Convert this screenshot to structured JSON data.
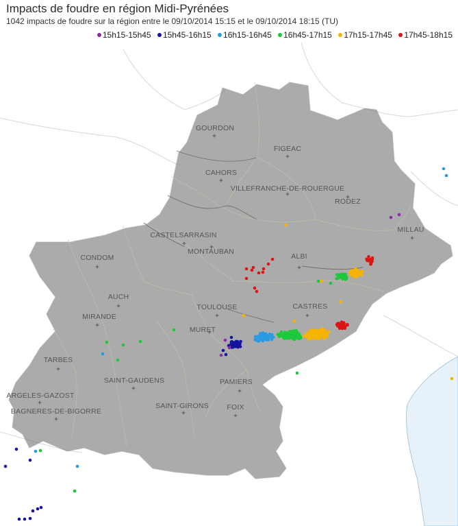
{
  "header": {
    "title": "Impacts de foudre en région Midi-Pyrénées",
    "subtitle": "1042 impacts de foudre sur la région entre le 09/10/2014 15:15 et le 09/10/2014 18:15 (TU)"
  },
  "legend": [
    {
      "label": "15h15-15h45",
      "color": "#8b2aa6"
    },
    {
      "label": "15h45-16h15",
      "color": "#1414a0"
    },
    {
      "label": "16h15-16h45",
      "color": "#2a9be0"
    },
    {
      "label": "16h45-17h15",
      "color": "#1ec83c"
    },
    {
      "label": "17h15-17h45",
      "color": "#f5b400"
    },
    {
      "label": "17h45-18h15",
      "color": "#dc1414"
    }
  ],
  "cities": [
    "GOURDON",
    "FIGEAC",
    "CAHORS",
    "VILLEFRANCHE-DE-ROUERGUE",
    "RODEZ",
    "MILLAU",
    "CASTELSARRASIN",
    "MONTAUBAN",
    "CONDOM",
    "ALBI",
    "AUCH",
    "TOULOUSE",
    "CASTRES",
    "MIRANDE",
    "MURET",
    "TARBES",
    "SAINT-GAUDENS",
    "PAMIERS",
    "ARGELES-GAZOST",
    "SAINT-GIRONS",
    "FOIX",
    "BAGNERES-DE-BIGORRE"
  ],
  "colors": {
    "land": "#ffffff",
    "outside": "#ffffff",
    "sea": "#e6f1fa",
    "border": "#6f6f6f",
    "dept": "#c9c7a3"
  }
}
